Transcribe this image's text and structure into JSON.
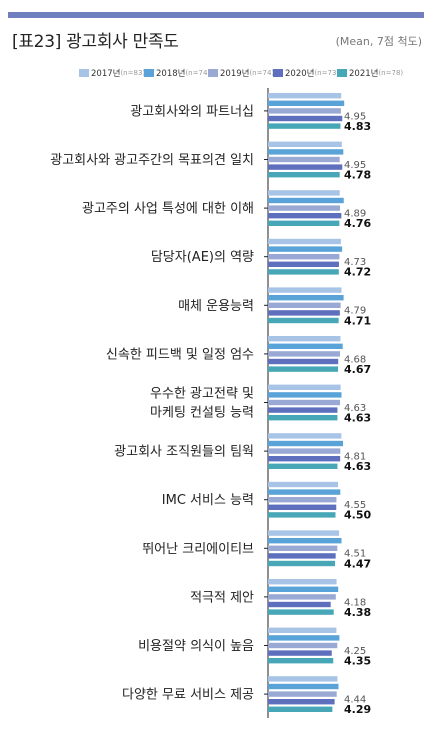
{
  "header": {
    "title": "[표23] 광고회사 만족도",
    "unit": "(Mean, 7점 척도)"
  },
  "colors": {
    "rule": "#6f7fbf",
    "series": [
      "#a7c3e6",
      "#5aa3d8",
      "#9aa8d4",
      "#5e6fbd",
      "#47a7b7"
    ]
  },
  "chart_data": {
    "type": "bar",
    "orientation": "horizontal",
    "title": "[표23] 광고회사 만족도",
    "unit": "(Mean, 7점 척도)",
    "categories": [
      [
        "광고회사와의 파트너십"
      ],
      [
        "광고회사와 광고주간의 목표의견 일치"
      ],
      [
        "광고주의 사업 특성에 대한 이해"
      ],
      [
        "담당자(AE)의 역량"
      ],
      [
        "매체 운용능력"
      ],
      [
        "신속한 피드백 및 일정 엄수"
      ],
      [
        "우수한 광고전략 및",
        "마케팅 컨설팅 능력"
      ],
      [
        "광고회사 조직원들의 팀웍"
      ],
      [
        "IMC 서비스 능력"
      ],
      [
        "뛰어난 크리에이티브"
      ],
      [
        "적극적 제안"
      ],
      [
        "비용절약 의식이 높음"
      ],
      [
        "다양한 무료 서비스 제공"
      ]
    ],
    "series": [
      {
        "name": "2017년",
        "n": "(n=83)",
        "values": [
          4.88,
          4.92,
          4.78,
          4.86,
          4.9,
          4.83,
          4.84,
          4.89,
          4.67,
          4.74,
          4.57,
          4.56,
          4.63
        ]
      },
      {
        "name": "2018년",
        "n": "(n=74)",
        "values": [
          5.08,
          5.02,
          5.05,
          4.94,
          5.04,
          4.98,
          4.9,
          5.0,
          4.82,
          4.9,
          4.68,
          4.76,
          4.7
        ]
      },
      {
        "name": "2019년",
        "n": "(n=74)",
        "values": [
          4.86,
          4.78,
          4.8,
          4.76,
          4.84,
          4.8,
          4.8,
          4.82,
          4.56,
          4.62,
          4.52,
          4.62,
          4.58
        ]
      },
      {
        "name": "2020년",
        "n": "(n=73)",
        "values": [
          4.95,
          4.95,
          4.89,
          4.73,
          4.79,
          4.68,
          4.63,
          4.81,
          4.55,
          4.51,
          4.18,
          4.25,
          4.44
        ]
      },
      {
        "name": "2021년",
        "n": "(n=78)",
        "values": [
          4.83,
          4.78,
          4.76,
          4.72,
          4.71,
          4.67,
          4.63,
          4.63,
          4.5,
          4.47,
          4.38,
          4.35,
          4.29
        ]
      }
    ],
    "labeled_series": [
      {
        "series": "2020년",
        "labels": [
          "4.95",
          "4.95",
          "4.89",
          "4.73",
          "4.79",
          "4.68",
          "4.63",
          "4.81",
          "4.55",
          "4.51",
          "4.18",
          "4.25",
          "4.44"
        ]
      },
      {
        "series": "2021년",
        "labels": [
          "4.83",
          "4.78",
          "4.76",
          "4.72",
          "4.71",
          "4.67",
          "4.63",
          "4.63",
          "4.50",
          "4.47",
          "4.38",
          "4.35",
          "4.29"
        ]
      }
    ],
    "xlim": [
      0,
      7
    ],
    "legend_position": "top",
    "grid": false
  }
}
